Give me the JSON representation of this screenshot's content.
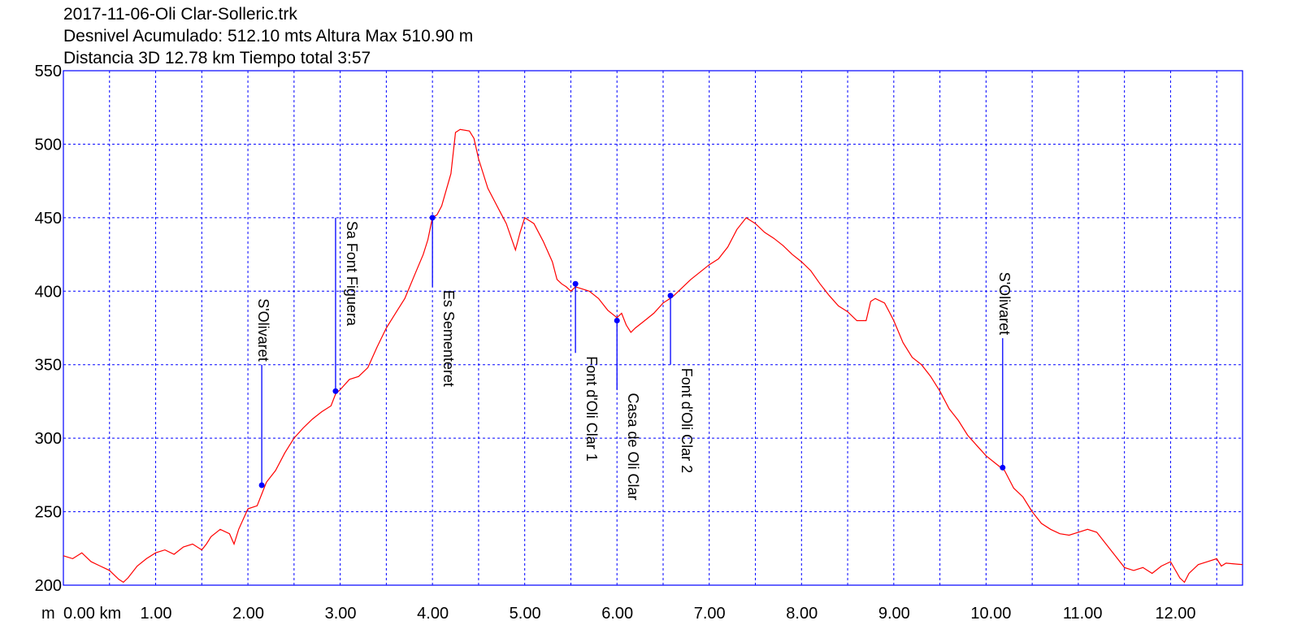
{
  "header": {
    "line1": "2017-11-06-Oli Clar-Solleric.trk",
    "line2": "Desnivel Acumulado: 512.10 mts  Altura Max 510.90 m",
    "line3": "Distancia 3D 12.78 km  Tiempo total 3:57"
  },
  "chart_data": {
    "type": "line",
    "title": "",
    "xlabel": "",
    "ylabel": "",
    "x_unit_label": "m",
    "xlim": [
      0,
      12.78
    ],
    "ylim": [
      200,
      550
    ],
    "grid": true,
    "x_ticks": [
      {
        "value": 0,
        "label": "0.00 km"
      },
      {
        "value": 1,
        "label": "1.00"
      },
      {
        "value": 2,
        "label": "2.00"
      },
      {
        "value": 3,
        "label": "3.00"
      },
      {
        "value": 4,
        "label": "4.00"
      },
      {
        "value": 5,
        "label": "5.00"
      },
      {
        "value": 6,
        "label": "6.00"
      },
      {
        "value": 7,
        "label": "7.00"
      },
      {
        "value": 8,
        "label": "8.00"
      },
      {
        "value": 9,
        "label": "9.00"
      },
      {
        "value": 10,
        "label": "10.00"
      },
      {
        "value": 11,
        "label": "11.00"
      },
      {
        "value": 12,
        "label": "12.00"
      }
    ],
    "x_minor_grid": [
      0.5,
      1.5,
      2.5,
      3.5,
      4.5,
      5.5,
      6.5,
      7.5,
      8.5,
      9.5,
      10.5,
      11.5,
      12.5
    ],
    "y_ticks": [
      {
        "value": 200,
        "label": "200"
      },
      {
        "value": 250,
        "label": "250"
      },
      {
        "value": 300,
        "label": "300"
      },
      {
        "value": 350,
        "label": "350"
      },
      {
        "value": 400,
        "label": "400"
      },
      {
        "value": 450,
        "label": "450"
      },
      {
        "value": 500,
        "label": "500"
      },
      {
        "value": 550,
        "label": "550"
      }
    ],
    "series": [
      {
        "color": "#ff0000",
        "points": [
          [
            0.0,
            220
          ],
          [
            0.1,
            218
          ],
          [
            0.2,
            222
          ],
          [
            0.3,
            216
          ],
          [
            0.4,
            213
          ],
          [
            0.5,
            210
          ],
          [
            0.55,
            207
          ],
          [
            0.6,
            204
          ],
          [
            0.65,
            202
          ],
          [
            0.7,
            205
          ],
          [
            0.8,
            213
          ],
          [
            0.9,
            218
          ],
          [
            1.0,
            222
          ],
          [
            1.1,
            224
          ],
          [
            1.2,
            221
          ],
          [
            1.3,
            226
          ],
          [
            1.4,
            228
          ],
          [
            1.5,
            224
          ],
          [
            1.55,
            228
          ],
          [
            1.6,
            233
          ],
          [
            1.7,
            238
          ],
          [
            1.8,
            235
          ],
          [
            1.85,
            228
          ],
          [
            1.9,
            238
          ],
          [
            2.0,
            252
          ],
          [
            2.1,
            254
          ],
          [
            2.15,
            262
          ],
          [
            2.2,
            270
          ],
          [
            2.3,
            278
          ],
          [
            2.4,
            290
          ],
          [
            2.5,
            300
          ],
          [
            2.6,
            307
          ],
          [
            2.7,
            313
          ],
          [
            2.8,
            318
          ],
          [
            2.9,
            322
          ],
          [
            2.95,
            330
          ],
          [
            3.0,
            333
          ],
          [
            3.1,
            340
          ],
          [
            3.2,
            342
          ],
          [
            3.3,
            348
          ],
          [
            3.4,
            362
          ],
          [
            3.5,
            375
          ],
          [
            3.6,
            385
          ],
          [
            3.7,
            395
          ],
          [
            3.8,
            410
          ],
          [
            3.9,
            425
          ],
          [
            3.95,
            435
          ],
          [
            4.0,
            450
          ],
          [
            4.05,
            452
          ],
          [
            4.1,
            458
          ],
          [
            4.2,
            480
          ],
          [
            4.25,
            508
          ],
          [
            4.3,
            510
          ],
          [
            4.4,
            509
          ],
          [
            4.45,
            504
          ],
          [
            4.5,
            490
          ],
          [
            4.6,
            470
          ],
          [
            4.7,
            458
          ],
          [
            4.8,
            446
          ],
          [
            4.9,
            428
          ],
          [
            4.95,
            440
          ],
          [
            5.0,
            450
          ],
          [
            5.05,
            448
          ],
          [
            5.1,
            446
          ],
          [
            5.2,
            434
          ],
          [
            5.3,
            420
          ],
          [
            5.35,
            408
          ],
          [
            5.4,
            405
          ],
          [
            5.45,
            403
          ],
          [
            5.5,
            400
          ],
          [
            5.55,
            403
          ],
          [
            5.6,
            402
          ],
          [
            5.7,
            400
          ],
          [
            5.8,
            395
          ],
          [
            5.9,
            387
          ],
          [
            6.0,
            382
          ],
          [
            6.05,
            385
          ],
          [
            6.1,
            377
          ],
          [
            6.15,
            372
          ],
          [
            6.2,
            375
          ],
          [
            6.3,
            380
          ],
          [
            6.4,
            385
          ],
          [
            6.5,
            392
          ],
          [
            6.6,
            396
          ],
          [
            6.7,
            402
          ],
          [
            6.8,
            408
          ],
          [
            6.9,
            413
          ],
          [
            7.0,
            418
          ],
          [
            7.1,
            422
          ],
          [
            7.2,
            430
          ],
          [
            7.3,
            442
          ],
          [
            7.4,
            450
          ],
          [
            7.45,
            448
          ],
          [
            7.5,
            446
          ],
          [
            7.6,
            440
          ],
          [
            7.7,
            436
          ],
          [
            7.8,
            431
          ],
          [
            7.9,
            425
          ],
          [
            8.0,
            420
          ],
          [
            8.1,
            414
          ],
          [
            8.2,
            405
          ],
          [
            8.3,
            397
          ],
          [
            8.4,
            390
          ],
          [
            8.5,
            386
          ],
          [
            8.6,
            380
          ],
          [
            8.7,
            380
          ],
          [
            8.75,
            393
          ],
          [
            8.8,
            395
          ],
          [
            8.9,
            392
          ],
          [
            8.95,
            386
          ],
          [
            9.0,
            380
          ],
          [
            9.1,
            365
          ],
          [
            9.2,
            355
          ],
          [
            9.3,
            350
          ],
          [
            9.4,
            342
          ],
          [
            9.5,
            332
          ],
          [
            9.6,
            320
          ],
          [
            9.7,
            312
          ],
          [
            9.8,
            302
          ],
          [
            9.9,
            295
          ],
          [
            10.0,
            288
          ],
          [
            10.1,
            283
          ],
          [
            10.2,
            278
          ],
          [
            10.3,
            266
          ],
          [
            10.4,
            260
          ],
          [
            10.5,
            250
          ],
          [
            10.6,
            242
          ],
          [
            10.7,
            238
          ],
          [
            10.8,
            235
          ],
          [
            10.9,
            234
          ],
          [
            11.0,
            236
          ],
          [
            11.1,
            238
          ],
          [
            11.2,
            236
          ],
          [
            11.3,
            228
          ],
          [
            11.4,
            220
          ],
          [
            11.5,
            212
          ],
          [
            11.6,
            210
          ],
          [
            11.7,
            212
          ],
          [
            11.8,
            208
          ],
          [
            11.9,
            213
          ],
          [
            12.0,
            216
          ],
          [
            12.1,
            205
          ],
          [
            12.15,
            202
          ],
          [
            12.2,
            208
          ],
          [
            12.3,
            214
          ],
          [
            12.4,
            216
          ],
          [
            12.5,
            218
          ],
          [
            12.55,
            213
          ],
          [
            12.6,
            215
          ],
          [
            12.78,
            214
          ]
        ]
      }
    ],
    "waypoints": [
      {
        "name": "S'Olivaret",
        "x": 2.15,
        "y": 268,
        "label_top_y": 350,
        "side": "left"
      },
      {
        "name": "Sa Font Figuera",
        "x": 2.95,
        "y": 332,
        "label_top_y": 450,
        "side": "right"
      },
      {
        "name": "Es Sementeret",
        "x": 4.0,
        "y": 450,
        "label_top_y": 403,
        "side": "right"
      },
      {
        "name": "Font d'Oli Clar 1",
        "x": 5.55,
        "y": 405,
        "label_top_y": 358,
        "side": "right"
      },
      {
        "name": "Casa de Oli Clar",
        "x": 6.0,
        "y": 380,
        "label_top_y": 333,
        "side": "right"
      },
      {
        "name": "Font d'Oli Clar 2",
        "x": 6.58,
        "y": 397,
        "label_top_y": 350,
        "side": "right"
      },
      {
        "name": "S'Olivaret",
        "x": 10.18,
        "y": 280,
        "label_top_y": 368,
        "side": "left"
      }
    ],
    "colors": {
      "line": "#ff0000",
      "grid": "#0000ff",
      "frame": "#0000ff",
      "waypoint": "#0000ff"
    }
  }
}
